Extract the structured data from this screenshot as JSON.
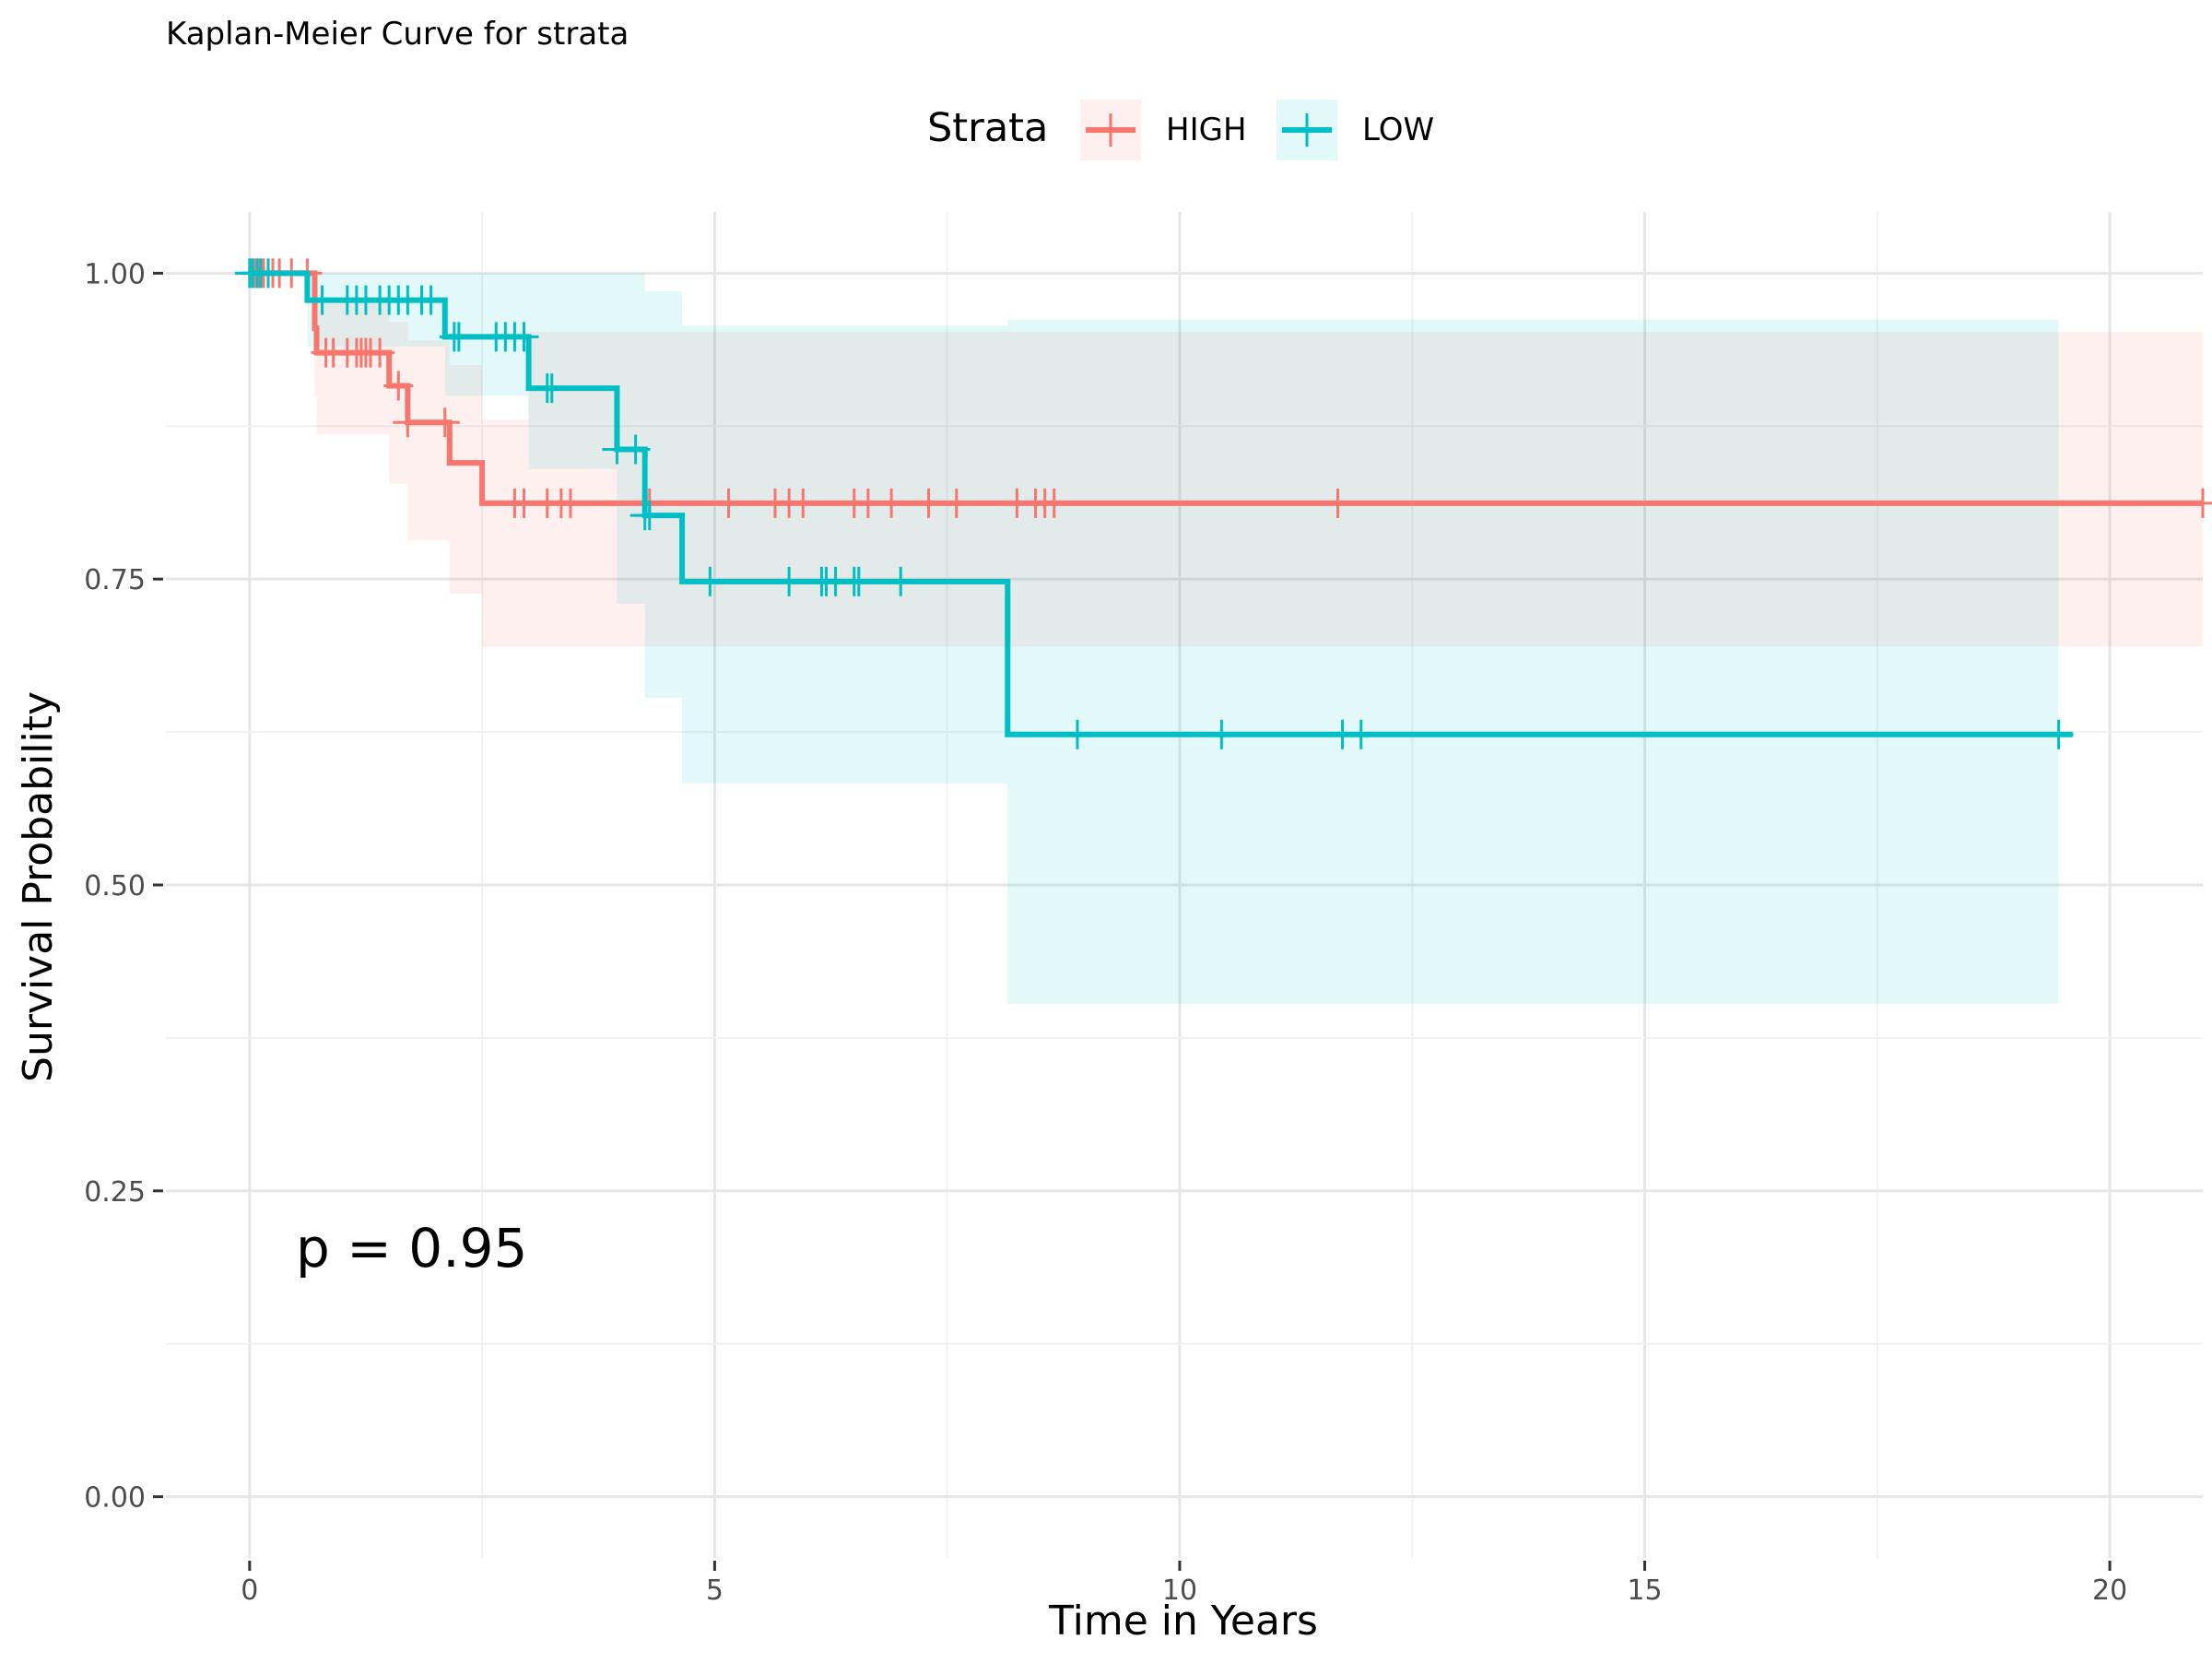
{
  "chart_data": {
    "type": "line",
    "title": "Kaplan-Meier Curve for strata",
    "xlabel": "Time in Years",
    "ylabel": "Survival Probability",
    "xlim": [
      -0.9,
      21.0
    ],
    "ylim": [
      -0.05,
      1.05
    ],
    "x_ticks": [
      0,
      5,
      10,
      15,
      20
    ],
    "x_tick_labels": [
      "0",
      "5",
      "10",
      "15",
      "20"
    ],
    "y_ticks": [
      0,
      0.25,
      0.5,
      0.75,
      1.0
    ],
    "y_tick_labels": [
      "0.00",
      "0.25",
      "0.50",
      "0.75",
      "1.00"
    ],
    "grid": true,
    "legend": {
      "title": "Strata",
      "position": "top"
    },
    "annotation": "p = 0.95",
    "series": [
      {
        "name": "HIGH",
        "color": "#F8766D",
        "band_color": "#F8766D",
        "steps": [
          [
            0,
            1.0
          ],
          [
            0.7,
            0.955
          ],
          [
            0.72,
            0.935
          ],
          [
            1.5,
            0.908
          ],
          [
            1.7,
            0.878
          ],
          [
            2.15,
            0.845
          ],
          [
            2.5,
            0.812
          ],
          [
            21.0,
            0.812
          ]
        ],
        "ci": [
          [
            0,
            1.0,
            1.0
          ],
          [
            0.7,
            0.985,
            0.9
          ],
          [
            0.72,
            0.975,
            0.868
          ],
          [
            1.5,
            0.96,
            0.828
          ],
          [
            1.7,
            0.945,
            0.782
          ],
          [
            2.15,
            0.925,
            0.738
          ],
          [
            2.5,
            0.88,
            0.695
          ],
          [
            3.0,
            0.952,
            0.695
          ],
          [
            21.0,
            0.952,
            0.695
          ]
        ],
        "censor_times": [
          0.05,
          0.1,
          0.15,
          0.25,
          0.32,
          0.45,
          0.62,
          0.82,
          0.9,
          1.05,
          1.15,
          1.2,
          1.25,
          1.3,
          1.4,
          1.6,
          1.7,
          2.1,
          2.85,
          2.95,
          3.2,
          3.35,
          3.45,
          4.3,
          5.15,
          5.65,
          5.8,
          5.95,
          6.5,
          6.65,
          6.9,
          7.3,
          7.6,
          8.25,
          8.45,
          8.55,
          8.65,
          11.7,
          21.0
        ]
      },
      {
        "name": "LOW",
        "color": "#00BFC4",
        "band_color": "#00BFC4",
        "steps": [
          [
            0,
            1.0
          ],
          [
            0.62,
            0.978
          ],
          [
            2.1,
            0.948
          ],
          [
            3.0,
            0.906
          ],
          [
            3.95,
            0.856
          ],
          [
            4.25,
            0.802
          ],
          [
            4.65,
            0.748
          ],
          [
            8.15,
            0.623
          ],
          [
            19.6,
            0.623
          ]
        ],
        "ci": [
          [
            0,
            1.0,
            1.0
          ],
          [
            0.62,
            1.0,
            0.94
          ],
          [
            2.1,
            1.0,
            0.9
          ],
          [
            3.0,
            1.0,
            0.84
          ],
          [
            3.95,
            1.0,
            0.73
          ],
          [
            4.25,
            0.985,
            0.653
          ],
          [
            4.65,
            0.957,
            0.583
          ],
          [
            8.15,
            0.962,
            0.403
          ],
          [
            19.45,
            0.962,
            0.403
          ]
        ],
        "censor_times": [
          0.0,
          0.03,
          0.08,
          0.12,
          0.2,
          0.78,
          1.05,
          1.15,
          1.25,
          1.4,
          1.5,
          1.6,
          1.7,
          1.85,
          1.95,
          2.2,
          2.25,
          2.65,
          2.75,
          2.85,
          2.95,
          3.2,
          3.25,
          3.95,
          4.15,
          4.25,
          4.3,
          4.95,
          5.8,
          6.15,
          6.2,
          6.3,
          6.5,
          6.55,
          7.0,
          8.9,
          10.45,
          11.75,
          11.95,
          19.45
        ]
      }
    ]
  }
}
